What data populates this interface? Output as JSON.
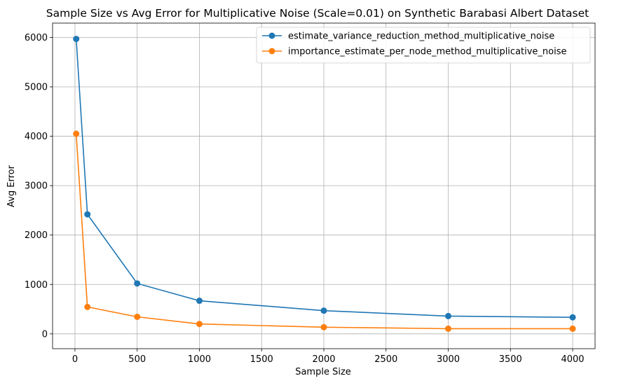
{
  "chart_data": {
    "type": "line",
    "title": "Sample Size vs Avg Error for Multiplicative Noise (Scale=0.01) on Synthetic Barabasi Albert Dataset",
    "xlabel": "Sample Size",
    "ylabel": "Avg Error",
    "xlim": [
      -180,
      4180
    ],
    "ylim": [
      -300,
      6290
    ],
    "xticks": [
      0,
      500,
      1000,
      1500,
      2000,
      2500,
      3000,
      3500,
      4000
    ],
    "yticks": [
      0,
      1000,
      2000,
      3000,
      4000,
      5000,
      6000
    ],
    "grid": true,
    "legend_position": "top-right",
    "x": [
      10,
      100,
      500,
      1000,
      2000,
      3000,
      4000
    ],
    "series": [
      {
        "name": "estimate_variance_reduction_method_multiplicative_noise",
        "color": "#1f77b4",
        "values": [
          5970,
          2420,
          1020,
          670,
          470,
          360,
          335
        ]
      },
      {
        "name": "importance_estimate_per_node_method_multiplicative_noise",
        "color": "#ff7f0e",
        "values": [
          4050,
          545,
          345,
          200,
          135,
          105,
          105
        ]
      }
    ]
  }
}
